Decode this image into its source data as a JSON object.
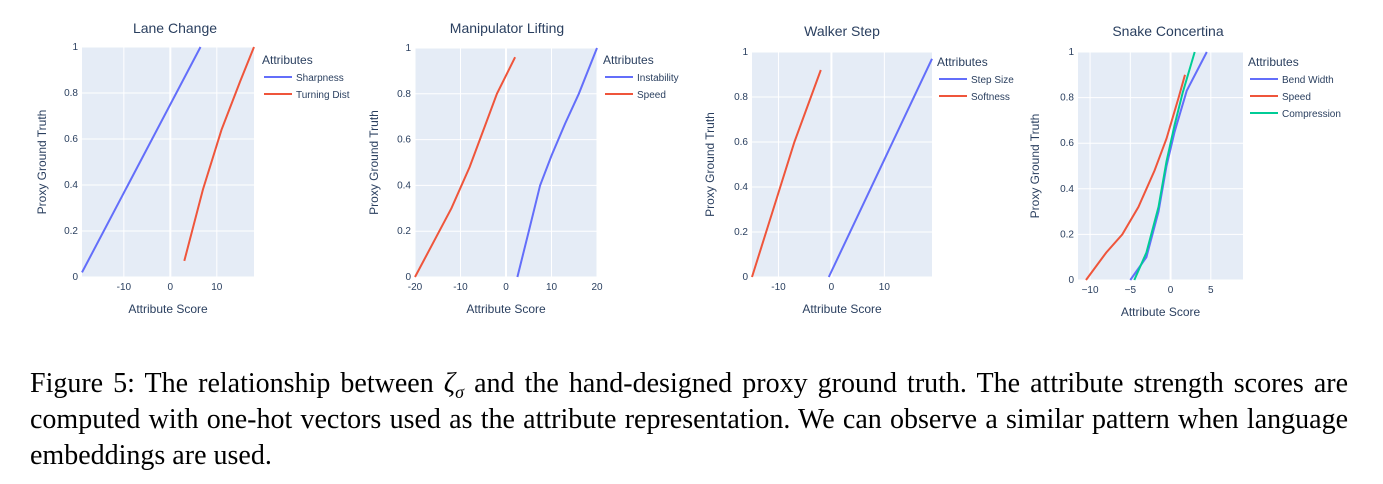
{
  "chart_data": [
    {
      "type": "line",
      "title": "Lane Change",
      "xlabel": "Attribute Score",
      "ylabel": "Proxy Ground Truth",
      "xlim": [
        -19,
        18
      ],
      "ylim": [
        0,
        1
      ],
      "xticks": [
        -10,
        0,
        10
      ],
      "yticks": [
        0,
        0.2,
        0.4,
        0.6,
        0.8,
        1
      ],
      "ytick_labels": [
        "0",
        "0.2",
        "0.4",
        "0.6",
        "0.8",
        "1"
      ],
      "legend_title": "Attributes",
      "series": [
        {
          "name": "Sharpness",
          "color": "#636efa",
          "points": [
            [
              -19,
              0.02
            ],
            [
              6.5,
              1.0
            ]
          ]
        },
        {
          "name": "Turning Dist",
          "color": "#ef553b",
          "points": [
            [
              3,
              0.07
            ],
            [
              7,
              0.38
            ],
            [
              11,
              0.64
            ],
            [
              15,
              0.85
            ],
            [
              18,
              1.0
            ]
          ]
        }
      ]
    },
    {
      "type": "line",
      "title": "Manipulator Lifting",
      "xlabel": "Attribute Score",
      "ylabel": "Proxy Ground Truth",
      "xlim": [
        -20,
        20
      ],
      "ylim": [
        0,
        1
      ],
      "xticks": [
        -20,
        -10,
        0,
        10,
        20
      ],
      "yticks": [
        0,
        0.2,
        0.4,
        0.6,
        0.8,
        1
      ],
      "ytick_labels": [
        "0",
        "0.2",
        "0.4",
        "0.6",
        "0.8",
        "1"
      ],
      "legend_title": "Attributes",
      "series": [
        {
          "name": "Instability",
          "color": "#636efa",
          "points": [
            [
              2.5,
              0.0
            ],
            [
              5,
              0.2
            ],
            [
              7.5,
              0.4
            ],
            [
              10,
              0.53
            ],
            [
              13,
              0.67
            ],
            [
              16,
              0.8
            ],
            [
              20,
              1.0
            ]
          ]
        },
        {
          "name": "Speed",
          "color": "#ef553b",
          "points": [
            [
              -20,
              0.0
            ],
            [
              -16,
              0.15
            ],
            [
              -12,
              0.3
            ],
            [
              -8,
              0.48
            ],
            [
              -5,
              0.64
            ],
            [
              -2,
              0.8
            ],
            [
              2,
              0.96
            ]
          ]
        }
      ]
    },
    {
      "type": "line",
      "title": "Walker Step",
      "xlabel": "Attribute Score",
      "ylabel": "Proxy Ground Truth",
      "xlim": [
        -15,
        19
      ],
      "ylim": [
        0,
        1
      ],
      "xticks": [
        -10,
        0,
        10
      ],
      "yticks": [
        0,
        0.2,
        0.4,
        0.6,
        0.8,
        1
      ],
      "ytick_labels": [
        "0",
        "0.2",
        "0.4",
        "0.6",
        "0.8",
        "1"
      ],
      "legend_title": "Attributes",
      "series": [
        {
          "name": "Step Size",
          "color": "#636efa",
          "points": [
            [
              -0.5,
              0.0
            ],
            [
              19,
              0.97
            ]
          ]
        },
        {
          "name": "Softness",
          "color": "#ef553b",
          "points": [
            [
              -15,
              0.0
            ],
            [
              -11,
              0.3
            ],
            [
              -7,
              0.6
            ],
            [
              -2,
              0.92
            ]
          ]
        }
      ]
    },
    {
      "type": "line",
      "title": "Snake Concertina",
      "xlabel": "Attribute Score",
      "ylabel": "Proxy Ground Truth",
      "xlim": [
        -11.5,
        9
      ],
      "ylim": [
        0,
        1
      ],
      "xticks": [
        -10,
        -5,
        0,
        5
      ],
      "xtick_labels": [
        "−10",
        "−5",
        "0",
        "5"
      ],
      "yticks": [
        0,
        0.2,
        0.4,
        0.6,
        0.8,
        1
      ],
      "ytick_labels": [
        "0",
        "0.2",
        "0.4",
        "0.6",
        "0.8",
        "1"
      ],
      "legend_title": "Attributes",
      "series": [
        {
          "name": "Bend Width",
          "color": "#636efa",
          "points": [
            [
              -5,
              0.0
            ],
            [
              -3,
              0.1
            ],
            [
              -1.5,
              0.3
            ],
            [
              -0.5,
              0.5
            ],
            [
              0.5,
              0.65
            ],
            [
              2,
              0.83
            ],
            [
              4.5,
              1.0
            ]
          ]
        },
        {
          "name": "Speed",
          "color": "#ef553b",
          "points": [
            [
              -10.5,
              0.0
            ],
            [
              -8,
              0.12
            ],
            [
              -6,
              0.2
            ],
            [
              -4,
              0.32
            ],
            [
              -2,
              0.48
            ],
            [
              -0.5,
              0.62
            ],
            [
              1,
              0.8
            ],
            [
              1.8,
              0.9
            ]
          ]
        },
        {
          "name": "Compression",
          "color": "#00cc96",
          "points": [
            [
              -4.5,
              0.0
            ],
            [
              -3,
              0.12
            ],
            [
              -1.5,
              0.32
            ],
            [
              -0.5,
              0.52
            ],
            [
              0.5,
              0.68
            ],
            [
              1.5,
              0.82
            ],
            [
              3,
              1.0
            ]
          ]
        }
      ]
    }
  ],
  "caption": {
    "prefix": "Figure 5: The relationship between ",
    "symbol": "ζ",
    "subscript": "σ",
    "suffix": " and the hand-designed proxy ground truth. The attribute strength scores are computed with one-hot vectors used as the attribute representation. We can observe a similar pattern when language embeddings are used."
  }
}
